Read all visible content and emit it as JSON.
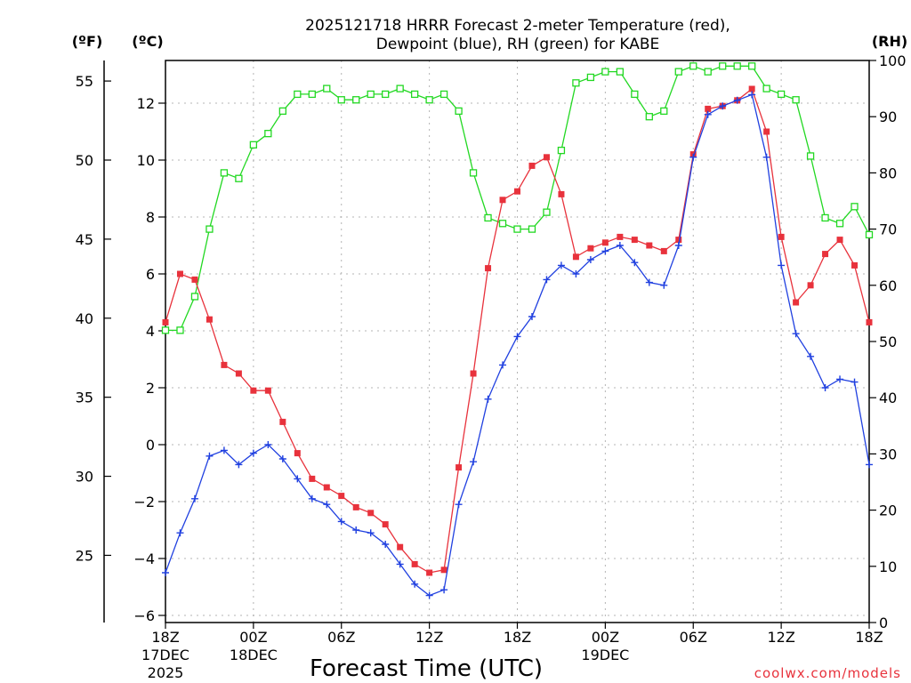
{
  "chart_data": {
    "type": "line",
    "title_line1": "2025121718 HRRR Forecast 2-meter Temperature (red),",
    "title_line2": "Dewpoint (blue), RH (green) for KABE",
    "units": {
      "fahrenheit": "(ºF)",
      "celsius": "(ºC)",
      "rh": "(RH)"
    },
    "xlabel": "Forecast Time (UTC)",
    "credit": "coolwx.com/models",
    "x_range_hours": [
      0,
      48
    ],
    "celsius_range": [
      -6.25,
      13.5
    ],
    "rh_range": [
      0,
      100
    ],
    "x_ticks": [
      {
        "hour": 0,
        "label": "18Z",
        "sub1": "17DEC",
        "sub2": "2025"
      },
      {
        "hour": 6,
        "label": "00Z",
        "sub1": "18DEC",
        "sub2": ""
      },
      {
        "hour": 12,
        "label": "06Z",
        "sub1": "",
        "sub2": ""
      },
      {
        "hour": 18,
        "label": "12Z",
        "sub1": "",
        "sub2": ""
      },
      {
        "hour": 24,
        "label": "18Z",
        "sub1": "",
        "sub2": ""
      },
      {
        "hour": 30,
        "label": "00Z",
        "sub1": "19DEC",
        "sub2": ""
      },
      {
        "hour": 36,
        "label": "06Z",
        "sub1": "",
        "sub2": ""
      },
      {
        "hour": 42,
        "label": "12Z",
        "sub1": "",
        "sub2": ""
      },
      {
        "hour": 48,
        "label": "18Z",
        "sub1": "",
        "sub2": ""
      }
    ],
    "celsius_ticks": [
      {
        "value": -6,
        "label": "−6"
      },
      {
        "value": -4,
        "label": "−4"
      },
      {
        "value": -2,
        "label": "−2"
      },
      {
        "value": 0,
        "label": "0"
      },
      {
        "value": 2,
        "label": "2"
      },
      {
        "value": 4,
        "label": "4"
      },
      {
        "value": 6,
        "label": "6"
      },
      {
        "value": 8,
        "label": "8"
      },
      {
        "value": 10,
        "label": "10"
      },
      {
        "value": 12,
        "label": "12"
      }
    ],
    "fahrenheit_ticks": [
      {
        "value": 25,
        "label": "25"
      },
      {
        "value": 30,
        "label": "30"
      },
      {
        "value": 35,
        "label": "35"
      },
      {
        "value": 40,
        "label": "40"
      },
      {
        "value": 45,
        "label": "45"
      },
      {
        "value": 50,
        "label": "50"
      },
      {
        "value": 55,
        "label": "55"
      }
    ],
    "rh_ticks": [
      {
        "value": 0,
        "label": "0"
      },
      {
        "value": 10,
        "label": "10"
      },
      {
        "value": 20,
        "label": "20"
      },
      {
        "value": 30,
        "label": "30"
      },
      {
        "value": 40,
        "label": "40"
      },
      {
        "value": 50,
        "label": "50"
      },
      {
        "value": 60,
        "label": "60"
      },
      {
        "value": 70,
        "label": "70"
      },
      {
        "value": 80,
        "label": "80"
      },
      {
        "value": 90,
        "label": "90"
      },
      {
        "value": 100,
        "label": "100"
      }
    ],
    "hours": [
      0,
      1,
      2,
      3,
      4,
      5,
      6,
      7,
      8,
      9,
      10,
      11,
      12,
      13,
      14,
      15,
      16,
      17,
      18,
      19,
      20,
      21,
      22,
      23,
      24,
      25,
      26,
      27,
      28,
      29,
      30,
      31,
      32,
      33,
      34,
      35,
      36,
      37,
      38,
      39,
      40,
      41,
      42,
      43,
      44,
      45,
      46,
      47,
      48
    ],
    "series": [
      {
        "name": "Temperature",
        "color": "#e8323c",
        "marker": "filled-square",
        "axis": "celsius",
        "values": [
          4.3,
          6.0,
          5.8,
          4.4,
          2.8,
          2.5,
          1.9,
          1.9,
          0.8,
          -0.3,
          -1.2,
          -1.5,
          -1.8,
          -2.2,
          -2.4,
          -2.8,
          -3.6,
          -4.2,
          -4.5,
          -4.4,
          -0.8,
          2.5,
          6.2,
          8.6,
          8.9,
          9.8,
          10.1,
          8.8,
          6.6,
          6.9,
          7.1,
          7.3,
          7.2,
          7.0,
          6.8,
          7.2,
          10.2,
          11.8,
          11.9,
          12.1,
          12.5,
          11.0,
          7.3,
          5.0,
          5.6,
          6.7,
          7.2,
          6.3,
          4.3
        ]
      },
      {
        "name": "Dewpoint",
        "color": "#2040e0",
        "marker": "plus",
        "axis": "celsius",
        "values": [
          -4.5,
          -3.1,
          -1.9,
          -0.4,
          -0.2,
          -0.7,
          -0.3,
          0.0,
          -0.5,
          -1.2,
          -1.9,
          -2.1,
          -2.7,
          -3.0,
          -3.1,
          -3.5,
          -4.2,
          -4.9,
          -5.3,
          -5.1,
          -2.1,
          -0.6,
          1.6,
          2.8,
          3.8,
          4.5,
          5.8,
          6.3,
          6.0,
          6.5,
          6.8,
          7.0,
          6.4,
          5.7,
          5.6,
          7.0,
          10.1,
          11.6,
          11.9,
          12.1,
          12.3,
          10.1,
          6.3,
          3.9,
          3.1,
          2.0,
          2.3,
          2.2,
          -0.7
        ]
      },
      {
        "name": "RH",
        "color": "#22d822",
        "marker": "open-square",
        "axis": "rh",
        "values": [
          52,
          52,
          58,
          70,
          80,
          79,
          85,
          87,
          91,
          94,
          94,
          95,
          93,
          93,
          94,
          94,
          95,
          94,
          93,
          94,
          91,
          80,
          72,
          71,
          70,
          70,
          73,
          84,
          96,
          97,
          98,
          98,
          94,
          90,
          91,
          98,
          99,
          98,
          99,
          99,
          99,
          95,
          94,
          93,
          83,
          72,
          71,
          74,
          69
        ]
      }
    ]
  }
}
